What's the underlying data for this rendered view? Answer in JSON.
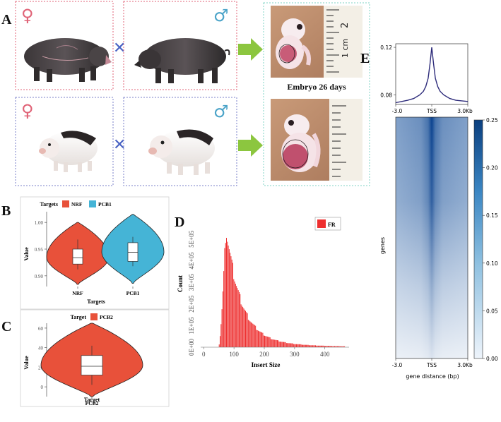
{
  "colors": {
    "female_box": "#e06377",
    "male_box": "#7a7fc9",
    "cross": "#4a63c4",
    "arrow": "#8cc63f",
    "embryo_frame": "#7fd3c4",
    "nrf": "#e8513a",
    "pcb1": "#45b4d6",
    "pcb2": "#e8513a",
    "fr": "#ee2f2f",
    "profile_line": "#2d2b7a",
    "heat_dark": "#0b3f7f",
    "heat_light": "#eef4fb"
  },
  "panel_a": {
    "label": "A",
    "female_symbol": "♀",
    "male_symbol": "♂",
    "cross_symbol": "✕",
    "embryo_caption": "Embryo 26 days",
    "ruler_labels": [
      "2",
      "1 cm"
    ]
  },
  "chart_data": [
    {
      "id": "B",
      "type": "violin",
      "panel_label": "B",
      "legend_title": "Targets",
      "legend": [
        "NRF",
        "PCB1"
      ],
      "categories": [
        "NRF",
        "PCB1"
      ],
      "xlabel": "Targets",
      "ylabel": "Value",
      "ylim": [
        0.88,
        1.02
      ],
      "yticks": [
        "0.90",
        "0.95",
        "1.00"
      ],
      "ytick_values": [
        0.9,
        0.95,
        1.0
      ],
      "series": [
        {
          "name": "NRF",
          "min": 0.884,
          "max": 1.0,
          "mode": 0.935,
          "q1": 0.922,
          "median": 0.934,
          "q3": 0.95,
          "whisker_low": 0.912,
          "whisker_high": 0.968
        },
        {
          "name": "PCB1",
          "min": 0.886,
          "max": 1.015,
          "mode": 0.945,
          "q1": 0.927,
          "median": 0.944,
          "q3": 0.962,
          "whisker_low": 0.918,
          "whisker_high": 0.973
        }
      ]
    },
    {
      "id": "C",
      "type": "violin",
      "panel_label": "C",
      "legend_title": "Target",
      "legend": [
        "PCB2"
      ],
      "categories": [
        "PCB2"
      ],
      "xlabel": "Target",
      "ylabel": "Value",
      "ylim": [
        -10,
        65
      ],
      "yticks": [
        "0",
        "20",
        "40",
        "60"
      ],
      "ytick_values": [
        0,
        20,
        40,
        60
      ],
      "series": [
        {
          "name": "PCB2",
          "min": -10,
          "max": 65,
          "mode": 22,
          "q1": 12,
          "median": 21,
          "q3": 32,
          "whisker_low": 2,
          "whisker_high": 42
        }
      ]
    },
    {
      "id": "D",
      "type": "bar",
      "panel_label": "D",
      "legend": [
        "FR"
      ],
      "xlabel": "Insert Size",
      "ylabel": "Count",
      "xlim": [
        -10,
        480
      ],
      "ylim": [
        0,
        620000
      ],
      "xticks": [
        "0",
        "100",
        "200",
        "300",
        "400"
      ],
      "xtick_values": [
        0,
        100,
        200,
        300,
        400
      ],
      "yticks": [
        "0E+00",
        "1E+05",
        "2E+05",
        "3E+05",
        "4E+05",
        "5E+05"
      ],
      "ytick_values": [
        0,
        100000,
        200000,
        300000,
        400000,
        500000
      ],
      "x_start": 50,
      "x_end": 465,
      "bin_width": 3,
      "peak_x": 72,
      "peak_count": 560000
    },
    {
      "id": "E_profile",
      "type": "line",
      "panel_label": "E",
      "x": [
        -3.0,
        -2.5,
        -2.0,
        -1.5,
        -1.0,
        -0.7,
        -0.5,
        -0.3,
        -0.15,
        0,
        0.15,
        0.3,
        0.5,
        0.7,
        1.0,
        1.5,
        2.0,
        2.5,
        3.0
      ],
      "y": [
        0.0735,
        0.0745,
        0.0755,
        0.077,
        0.08,
        0.083,
        0.087,
        0.094,
        0.106,
        0.12,
        0.106,
        0.094,
        0.087,
        0.083,
        0.08,
        0.077,
        0.0755,
        0.075,
        0.0745
      ],
      "ylim": [
        0.072,
        0.123
      ],
      "yticks": [
        "0.08",
        "0.12"
      ],
      "ytick_values": [
        0.08,
        0.12
      ],
      "xticks": [
        "-3.0",
        "TSS",
        "3.0Kb"
      ]
    },
    {
      "id": "E_heatmap",
      "type": "heatmap",
      "xlabel": "gene distance (bp)",
      "ylabel": "genes",
      "xticks": [
        "-3.0",
        "TSS",
        "3.0Kb"
      ],
      "colorbar_range": [
        0.0,
        0.25
      ],
      "colorbar_ticks": [
        "0.00",
        "0.05",
        "0.10",
        "0.15",
        "0.20",
        "0.25"
      ],
      "colorbar_tick_values": [
        0.0,
        0.05,
        0.1,
        0.15,
        0.2,
        0.25
      ]
    }
  ]
}
